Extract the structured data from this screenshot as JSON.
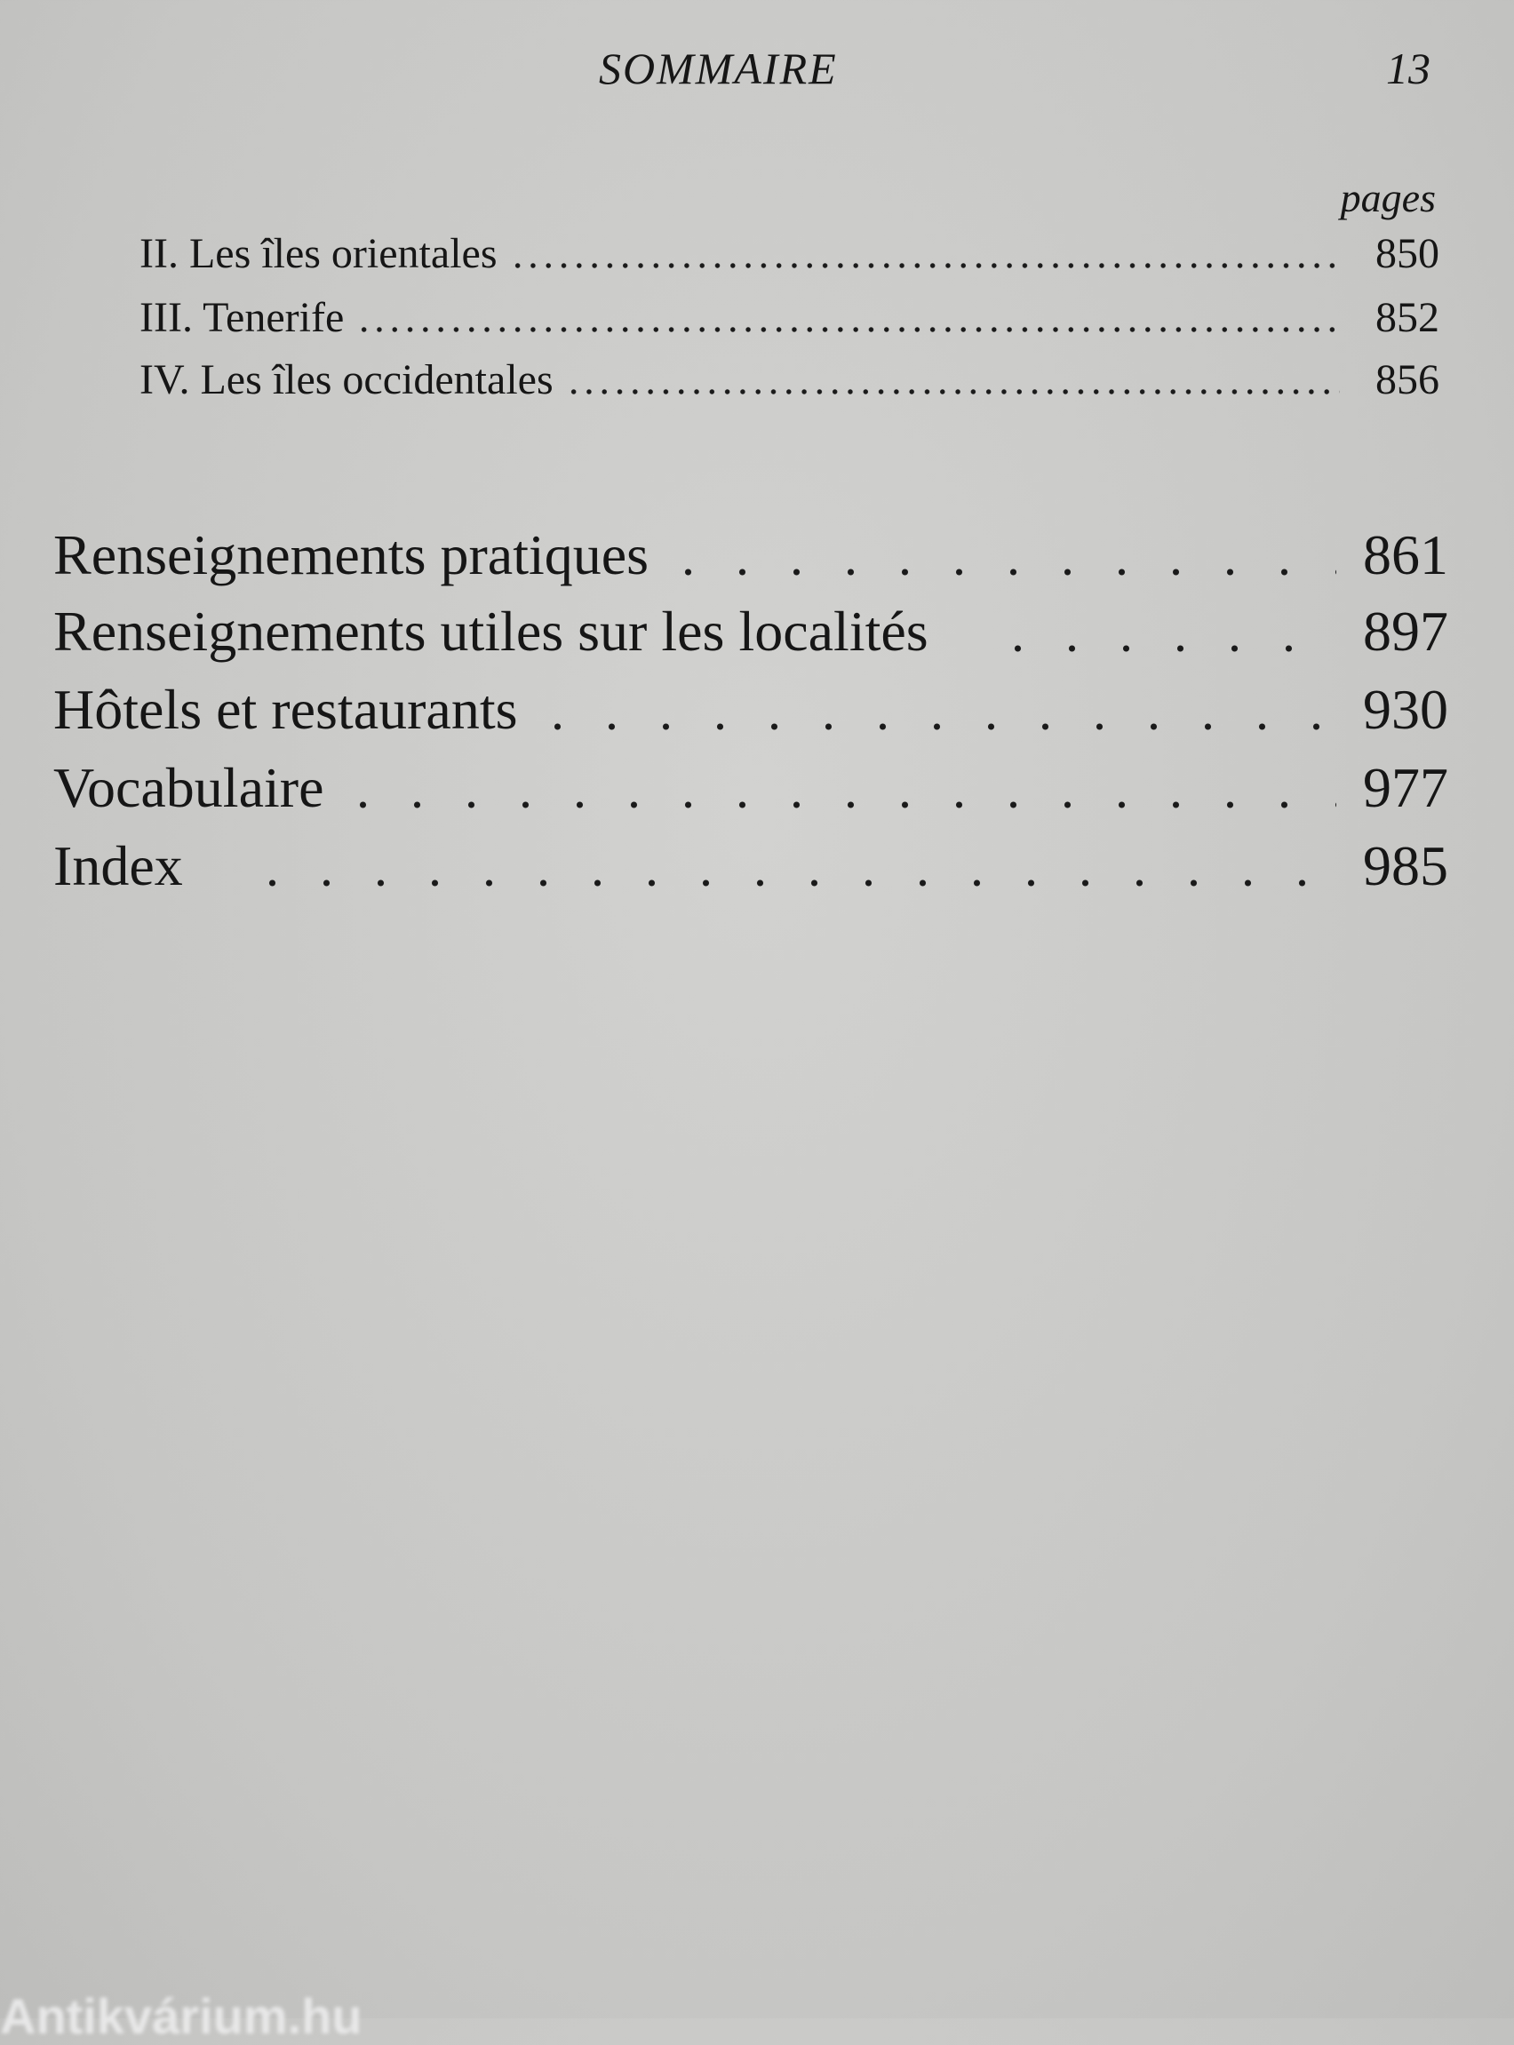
{
  "header": {
    "title": "SOMMAIRE",
    "page_number": "13"
  },
  "pages_label": "pages",
  "sub_entries": [
    {
      "label": "II. Les îles orientales",
      "page": "850"
    },
    {
      "label": "III. Tenerife",
      "page": "852"
    },
    {
      "label": "IV. Les îles occidentales",
      "page": "856"
    }
  ],
  "main_entries": [
    {
      "label": "Renseignements pratiques",
      "page": "861"
    },
    {
      "label": "Renseignements utiles sur les localités",
      "page": "897"
    },
    {
      "label": "Hôtels et restaurants",
      "page": "930"
    },
    {
      "label": "Vocabulaire",
      "page": "977"
    },
    {
      "label": "Index",
      "page": "985"
    }
  ],
  "watermark": "Antikvárium.hu"
}
